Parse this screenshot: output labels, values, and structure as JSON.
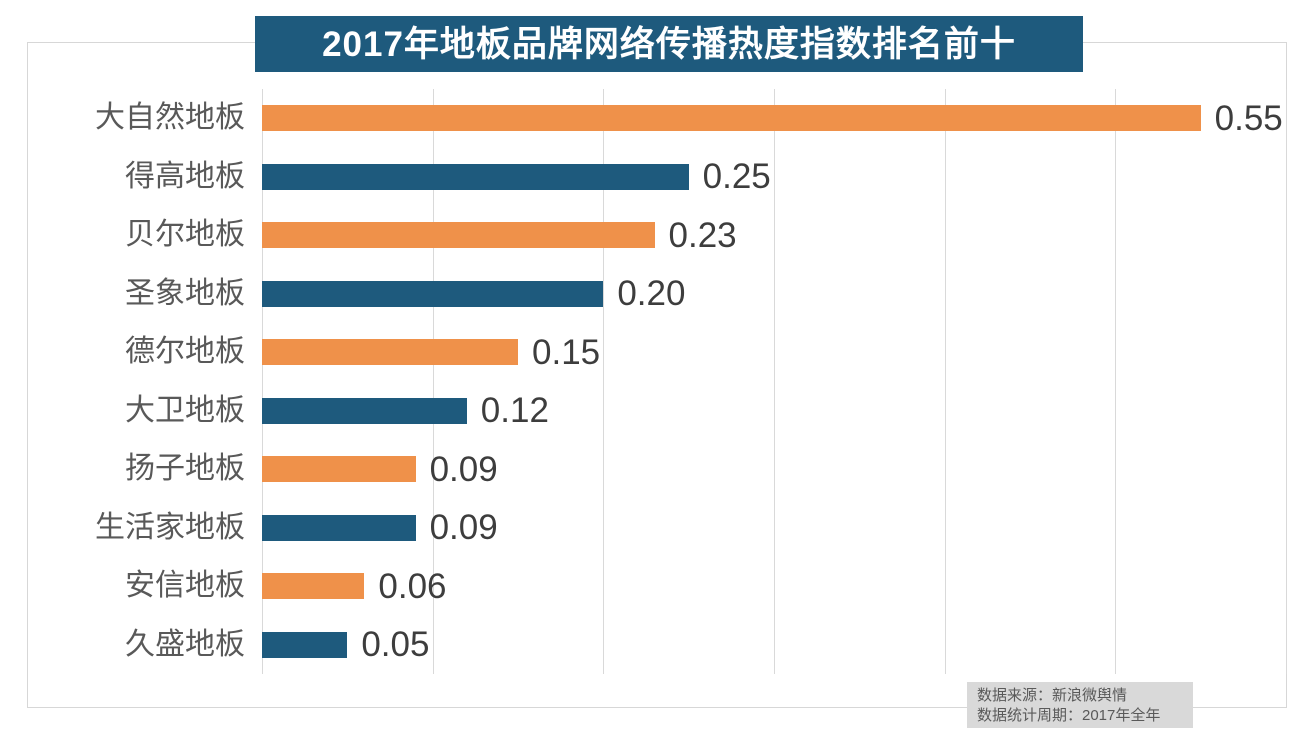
{
  "title": "2017年地板品牌网络传播热度指数排名前十",
  "source": {
    "line1": "数据来源：新浪微舆情",
    "line2": "数据统计周期：2017年全年"
  },
  "colors": {
    "title_bg": "#1e5a7d",
    "bar_orange": "#ef914a",
    "bar_blue": "#1e5a7d",
    "gridline": "#d9d9d9",
    "frame_border": "#d7d7d7",
    "category_text": "#595959",
    "value_text": "#3d3d3d",
    "footer_bg": "#d9d9d9",
    "footer_text": "#595959",
    "title_text": "#ffffff"
  },
  "chart_data": {
    "type": "bar",
    "orientation": "horizontal",
    "title": "2017年地板品牌网络传播热度指数排名前十",
    "categories": [
      "大自然地板",
      "得高地板",
      "贝尔地板",
      "圣象地板",
      "德尔地板",
      "大卫地板",
      "扬子地板",
      "生活家地板",
      "安信地板",
      "久盛地板"
    ],
    "values": [
      0.55,
      0.25,
      0.23,
      0.2,
      0.15,
      0.12,
      0.09,
      0.09,
      0.06,
      0.05
    ],
    "value_labels": [
      "0.55",
      "0.25",
      "0.23",
      "0.20",
      "0.15",
      "0.12",
      "0.09",
      "0.09",
      "0.06",
      "0.05"
    ],
    "bar_colors_alternate": [
      "#ef914a",
      "#1e5a7d"
    ],
    "xlabel": "",
    "ylabel": "",
    "xlim": [
      0,
      0.6
    ],
    "grid_step": 0.1,
    "grid": true,
    "legend": false,
    "x_tick_labels_visible": false,
    "annotations": [
      "数据来源：新浪微舆情",
      "数据统计周期：2017年全年"
    ]
  }
}
